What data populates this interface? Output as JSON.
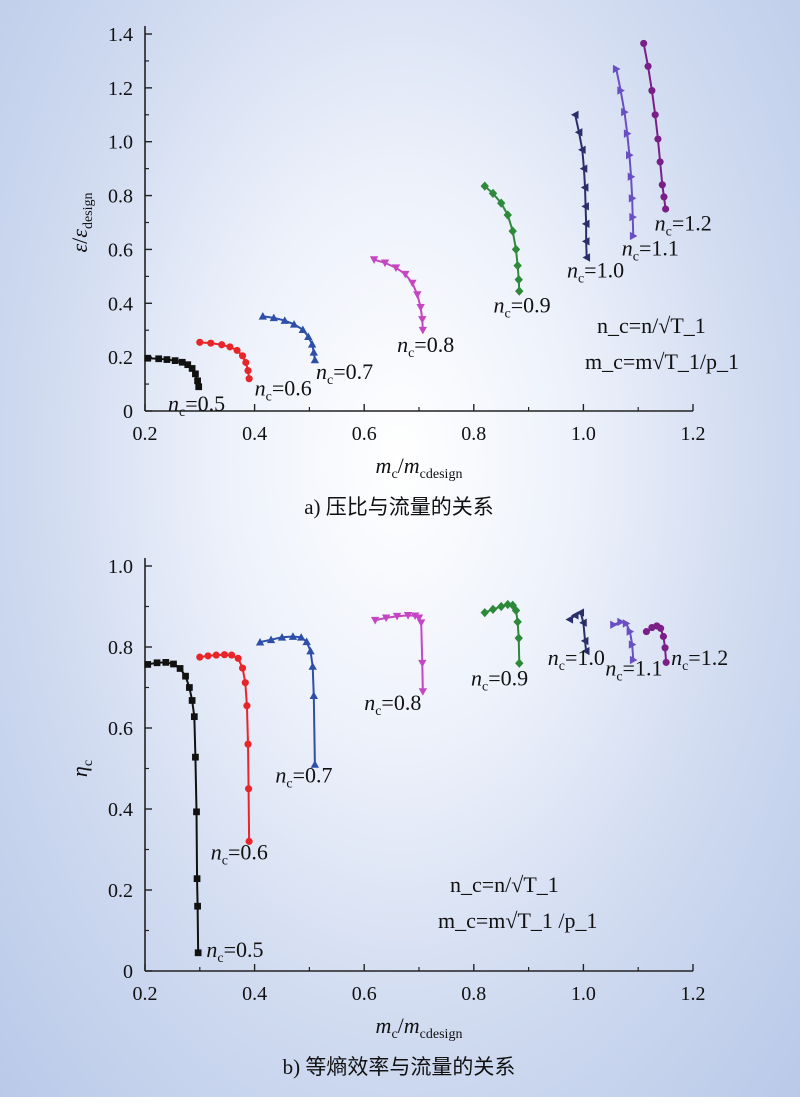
{
  "chart_data": [
    {
      "type": "line",
      "caption": "a) 压比与流量的关系",
      "xlabel": {
        "main": "m",
        "sub1": "c",
        "sep": "/",
        "main2": "m",
        "sub2": "cdesign"
      },
      "ylabel": {
        "main": "ε",
        "sub1": "",
        "sep": "/",
        "main2": "ε",
        "sub2": "design"
      },
      "xlim": [
        0.2,
        1.2
      ],
      "ylim": [
        0,
        1.4
      ],
      "xticks": [
        "0.2",
        "0.4",
        "0.6",
        "0.8",
        "1.0",
        "1.2"
      ],
      "yticks": [
        "0",
        "0.2",
        "0.4",
        "0.6",
        "0.8",
        "1.0",
        "1.2",
        "1.4"
      ],
      "formula": {
        "line1": "n_c=n/√T_1",
        "line2": "m_c=m√T_1/p_1"
      },
      "series": [
        {
          "name": "0.5",
          "label_prefix": "n",
          "label_sub": "c",
          "label_value": "=0.5",
          "color": "#111111",
          "marker": "square",
          "label_anchor": [
            0.242,
            -0.0
          ],
          "x": [
            0.205,
            0.225,
            0.24,
            0.255,
            0.268,
            0.278,
            0.286,
            0.292,
            0.296,
            0.298
          ],
          "y": [
            0.196,
            0.194,
            0.191,
            0.187,
            0.181,
            0.172,
            0.158,
            0.138,
            0.112,
            0.09
          ]
        },
        {
          "name": "0.6",
          "label_prefix": "n",
          "label_sub": "c",
          "label_value": "=0.6",
          "color": "#e8262a",
          "marker": "circle",
          "label_anchor": [
            0.4,
            0.058
          ],
          "x": [
            0.3,
            0.32,
            0.34,
            0.355,
            0.368,
            0.378,
            0.384,
            0.388,
            0.39
          ],
          "y": [
            0.255,
            0.252,
            0.246,
            0.238,
            0.225,
            0.205,
            0.18,
            0.15,
            0.12
          ]
        },
        {
          "name": "0.7",
          "label_prefix": "n",
          "label_sub": "c",
          "label_value": "=0.7",
          "color": "#2d4fa8",
          "marker": "triangle-up",
          "label_anchor": [
            0.512,
            0.118
          ],
          "x": [
            0.415,
            0.435,
            0.455,
            0.472,
            0.488,
            0.498,
            0.505,
            0.508,
            0.51
          ],
          "y": [
            0.352,
            0.346,
            0.336,
            0.322,
            0.302,
            0.276,
            0.248,
            0.218,
            0.19
          ]
        },
        {
          "name": "0.8",
          "label_prefix": "n",
          "label_sub": "c",
          "label_value": "=0.8",
          "color": "#c546c2",
          "marker": "triangle-down",
          "label_anchor": [
            0.66,
            0.22
          ],
          "x": [
            0.618,
            0.638,
            0.658,
            0.675,
            0.688,
            0.697,
            0.703,
            0.706,
            0.707
          ],
          "y": [
            0.562,
            0.55,
            0.532,
            0.508,
            0.475,
            0.432,
            0.385,
            0.34,
            0.3
          ]
        },
        {
          "name": "0.9",
          "label_prefix": "n",
          "label_sub": "c",
          "label_value": "=0.9",
          "color": "#2e8a3a",
          "marker": "diamond",
          "label_anchor": [
            0.836,
            0.365
          ],
          "x": [
            0.82,
            0.835,
            0.85,
            0.862,
            0.871,
            0.877,
            0.88,
            0.882,
            0.883
          ],
          "y": [
            0.835,
            0.808,
            0.772,
            0.728,
            0.668,
            0.6,
            0.54,
            0.488,
            0.445
          ]
        },
        {
          "name": "1.0",
          "label_prefix": "n",
          "label_sub": "c",
          "label_value": "=1.0",
          "color": "#2a2f6a",
          "marker": "triangle-left",
          "label_anchor": [
            0.97,
            0.495
          ],
          "x": [
            0.985,
            0.992,
            0.998,
            1.001,
            1.003,
            1.004,
            1.005,
            1.005,
            1.006
          ],
          "y": [
            1.1,
            1.035,
            0.97,
            0.9,
            0.83,
            0.76,
            0.695,
            0.63,
            0.57
          ]
        },
        {
          "name": "1.1",
          "label_prefix": "n",
          "label_sub": "c",
          "label_value": "=1.1",
          "color": "#6a4ec4",
          "marker": "triangle-right",
          "label_anchor": [
            1.07,
            0.578
          ],
          "x": [
            1.06,
            1.068,
            1.075,
            1.08,
            1.084,
            1.087,
            1.089,
            1.09,
            1.091
          ],
          "y": [
            1.27,
            1.19,
            1.11,
            1.03,
            0.95,
            0.87,
            0.79,
            0.72,
            0.65
          ]
        },
        {
          "name": "1.2",
          "label_prefix": "n",
          "label_sub": "c",
          "label_value": "=1.2",
          "color": "#7a1e88",
          "marker": "circle",
          "label_anchor": [
            1.13,
            0.67
          ],
          "x": [
            1.11,
            1.118,
            1.125,
            1.131,
            1.136,
            1.14,
            1.144,
            1.147,
            1.15
          ],
          "y": [
            1.365,
            1.28,
            1.19,
            1.1,
            1.01,
            0.925,
            0.84,
            0.795,
            0.75
          ]
        }
      ]
    },
    {
      "type": "line",
      "caption": "b) 等熵效率与流量的关系",
      "xlabel": {
        "main": "m",
        "sub1": "c",
        "sep": "/",
        "main2": "m",
        "sub2": "cdesign"
      },
      "ylabel": {
        "main": "η",
        "sub1": "c",
        "sep": "",
        "main2": "",
        "sub2": ""
      },
      "xlim": [
        0.2,
        1.2
      ],
      "ylim": [
        0,
        1.0
      ],
      "xticks": [
        "0.2",
        "0.4",
        "0.6",
        "0.8",
        "1.0",
        "1.2"
      ],
      "yticks": [
        "0",
        "0.2",
        "0.4",
        "0.6",
        "0.8",
        "1.0"
      ],
      "formula": {
        "line1": "n_c=n/√T_1",
        "line2": "m_c=m√T_1 /p_1"
      },
      "series": [
        {
          "name": "0.5",
          "label_prefix": "n",
          "label_sub": "c",
          "label_value": "=0.5",
          "color": "#111111",
          "marker": "square",
          "label_anchor": [
            0.312,
            0.035
          ],
          "x": [
            0.205,
            0.222,
            0.238,
            0.252,
            0.264,
            0.274,
            0.281,
            0.286,
            0.29,
            0.292,
            0.294,
            0.295,
            0.296,
            0.297
          ],
          "y": [
            0.757,
            0.761,
            0.762,
            0.758,
            0.747,
            0.728,
            0.7,
            0.668,
            0.628,
            0.528,
            0.393,
            0.228,
            0.16,
            0.045
          ]
        },
        {
          "name": "0.6",
          "label_prefix": "n",
          "label_sub": "c",
          "label_value": "=0.6",
          "color": "#e8262a",
          "marker": "circle",
          "label_anchor": [
            0.32,
            0.275
          ],
          "x": [
            0.3,
            0.315,
            0.33,
            0.345,
            0.358,
            0.37,
            0.378,
            0.383,
            0.386,
            0.388,
            0.389,
            0.39
          ],
          "y": [
            0.775,
            0.778,
            0.78,
            0.781,
            0.78,
            0.772,
            0.748,
            0.712,
            0.655,
            0.56,
            0.45,
            0.32
          ]
        },
        {
          "name": "0.7",
          "label_prefix": "n",
          "label_sub": "c",
          "label_value": "=0.7",
          "color": "#2d4fa8",
          "marker": "triangle-up",
          "label_anchor": [
            0.438,
            0.465
          ],
          "x": [
            0.41,
            0.43,
            0.45,
            0.47,
            0.485,
            0.495,
            0.502,
            0.506,
            0.508,
            0.51
          ],
          "y": [
            0.812,
            0.818,
            0.824,
            0.826,
            0.824,
            0.813,
            0.79,
            0.752,
            0.68,
            0.51
          ]
        },
        {
          "name": "0.8",
          "label_prefix": "n",
          "label_sub": "c",
          "label_value": "=0.8",
          "color": "#c546c2",
          "marker": "triangle-down",
          "label_anchor": [
            0.6,
            0.645
          ],
          "x": [
            0.62,
            0.64,
            0.66,
            0.68,
            0.693,
            0.7,
            0.704,
            0.706,
            0.707
          ],
          "y": [
            0.866,
            0.872,
            0.876,
            0.878,
            0.877,
            0.872,
            0.86,
            0.76,
            0.69
          ]
        },
        {
          "name": "0.9",
          "label_prefix": "n",
          "label_sub": "c",
          "label_value": "=0.9",
          "color": "#2e8a3a",
          "marker": "diamond",
          "label_anchor": [
            0.795,
            0.705
          ],
          "x": [
            0.82,
            0.835,
            0.85,
            0.862,
            0.871,
            0.877,
            0.88,
            0.882,
            0.883
          ],
          "y": [
            0.885,
            0.893,
            0.9,
            0.905,
            0.903,
            0.89,
            0.862,
            0.822,
            0.76
          ]
        },
        {
          "name": "1.0",
          "label_prefix": "n",
          "label_sub": "c",
          "label_value": "=1.0",
          "color": "#2a2f6a",
          "marker": "triangle-left",
          "label_anchor": [
            0.935,
            0.755
          ],
          "x": [
            0.975,
            0.985,
            0.995,
            1.0,
            1.003,
            1.005
          ],
          "y": [
            0.868,
            0.878,
            0.885,
            0.86,
            0.815,
            0.79
          ]
        },
        {
          "name": "1.1",
          "label_prefix": "n",
          "label_sub": "c",
          "label_value": "=1.1",
          "color": "#6a4ec4",
          "marker": "triangle-right",
          "label_anchor": [
            1.04,
            0.73
          ],
          "x": [
            1.055,
            1.068,
            1.078,
            1.085,
            1.089,
            1.091
          ],
          "y": [
            0.855,
            0.862,
            0.858,
            0.838,
            0.806,
            0.768
          ]
        },
        {
          "name": "1.2",
          "label_prefix": "n",
          "label_sub": "c",
          "label_value": "=1.2",
          "color": "#7a1e88",
          "marker": "circle",
          "label_anchor": [
            1.16,
            0.755
          ],
          "x": [
            1.115,
            1.125,
            1.134,
            1.141,
            1.146,
            1.149,
            1.151
          ],
          "y": [
            0.838,
            0.848,
            0.852,
            0.846,
            0.826,
            0.798,
            0.762
          ]
        }
      ]
    }
  ]
}
